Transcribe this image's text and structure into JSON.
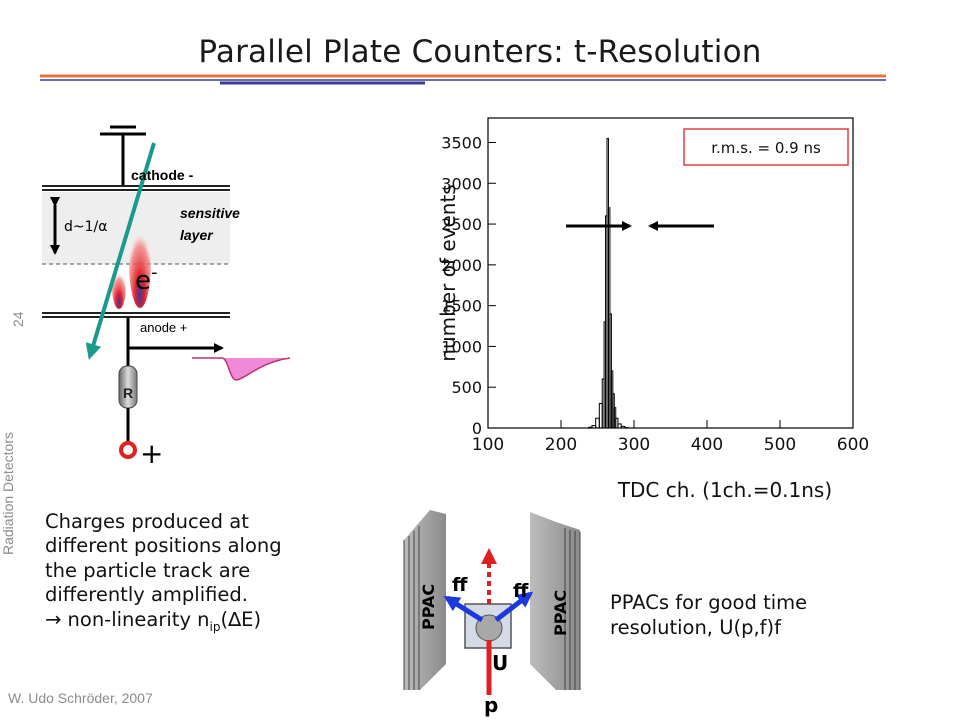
{
  "slide": {
    "title": "Parallel Plate Counters: t-Resolution",
    "side_label": "Radiation Detectors",
    "slide_number": "24",
    "author": "W. Udo Schröder, 2007"
  },
  "counter_diagram": {
    "cathode_label": "cathode -",
    "anode_label": "anode +",
    "gap_label": "d~1/α",
    "sensitive_label_line1": "sensitive",
    "sensitive_label_line2": "layer",
    "electron_label": "e",
    "electron_sup": "-",
    "resistor_label": "R",
    "plus_label": "+"
  },
  "description": {
    "line1": "Charges produced at",
    "line2": "different positions along",
    "line3": "the particle track are",
    "line4": "differently amplified.",
    "line5_prefix": "→ non-linearity n",
    "line5_sub": "ip",
    "line5_suffix": "(∆E)"
  },
  "histogram": {
    "ylabel": "number of events",
    "xlabel": "TDC ch. (1ch.=0.1ns)",
    "rms_label": "r.m.s. = 0.9 ns",
    "x_ticks": [
      "100",
      "200",
      "300",
      "400",
      "500",
      "600"
    ],
    "y_ticks": [
      "0",
      "500",
      "1000",
      "1500",
      "2000",
      "2500",
      "3000",
      "3500"
    ]
  },
  "chart_data": {
    "type": "bar",
    "xlabel": "TDC ch. (1ch.=0.1ns)",
    "ylabel": "number of events",
    "xlim": [
      100,
      600
    ],
    "ylim": [
      0,
      3800
    ],
    "annotations": [
      "r.m.s. = 0.9 ns"
    ],
    "x": [
      240,
      245,
      250,
      255,
      258,
      260,
      262,
      264,
      266,
      268,
      270,
      272,
      274,
      276,
      280,
      285,
      290
    ],
    "values": [
      10,
      30,
      120,
      300,
      600,
      1300,
      2600,
      3550,
      2700,
      1400,
      700,
      420,
      250,
      120,
      50,
      20,
      5
    ]
  },
  "ppac_diagram": {
    "ppac_left": "PPAC",
    "ppac_right": "PPAC",
    "ff_left": "ff",
    "ff_right": "ff",
    "u_label": "U",
    "p_label": "p",
    "caption_line1": "PPACs for good time",
    "caption_line2": "resolution, U(p,f)f"
  },
  "colors": {
    "header_rule_orange": "#e07a3a",
    "header_rule_blue": "#3a3a9a",
    "track_teal": "#1a9a8a",
    "avalanche_red": "#e0202a",
    "avalanche_blue": "#3a3aa0",
    "signal_pink": "#f08ad8",
    "arrow_blue": "#1a3ae0",
    "ppac_grey": "#9a9a9a",
    "rms_box_red": "#e04040"
  }
}
